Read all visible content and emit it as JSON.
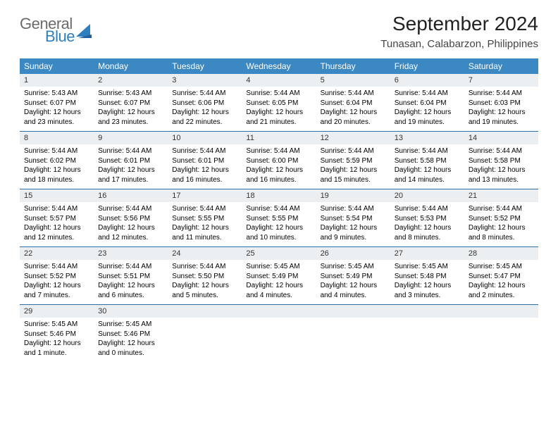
{
  "brand": {
    "general": "General",
    "blue": "Blue"
  },
  "title": "September 2024",
  "location": "Tunasan, Calabarzon, Philippines",
  "colors": {
    "header_bg": "#3b88c3",
    "daynum_bg": "#eceff1",
    "week_border": "#2d6fa3",
    "logo_gray": "#6b6b6b",
    "logo_blue": "#2f7fbf"
  },
  "day_headers": [
    "Sunday",
    "Monday",
    "Tuesday",
    "Wednesday",
    "Thursday",
    "Friday",
    "Saturday"
  ],
  "weeks": [
    [
      {
        "n": "1",
        "sr": "Sunrise: 5:43 AM",
        "ss": "Sunset: 6:07 PM",
        "dl": "Daylight: 12 hours and 23 minutes."
      },
      {
        "n": "2",
        "sr": "Sunrise: 5:43 AM",
        "ss": "Sunset: 6:07 PM",
        "dl": "Daylight: 12 hours and 23 minutes."
      },
      {
        "n": "3",
        "sr": "Sunrise: 5:44 AM",
        "ss": "Sunset: 6:06 PM",
        "dl": "Daylight: 12 hours and 22 minutes."
      },
      {
        "n": "4",
        "sr": "Sunrise: 5:44 AM",
        "ss": "Sunset: 6:05 PM",
        "dl": "Daylight: 12 hours and 21 minutes."
      },
      {
        "n": "5",
        "sr": "Sunrise: 5:44 AM",
        "ss": "Sunset: 6:04 PM",
        "dl": "Daylight: 12 hours and 20 minutes."
      },
      {
        "n": "6",
        "sr": "Sunrise: 5:44 AM",
        "ss": "Sunset: 6:04 PM",
        "dl": "Daylight: 12 hours and 19 minutes."
      },
      {
        "n": "7",
        "sr": "Sunrise: 5:44 AM",
        "ss": "Sunset: 6:03 PM",
        "dl": "Daylight: 12 hours and 19 minutes."
      }
    ],
    [
      {
        "n": "8",
        "sr": "Sunrise: 5:44 AM",
        "ss": "Sunset: 6:02 PM",
        "dl": "Daylight: 12 hours and 18 minutes."
      },
      {
        "n": "9",
        "sr": "Sunrise: 5:44 AM",
        "ss": "Sunset: 6:01 PM",
        "dl": "Daylight: 12 hours and 17 minutes."
      },
      {
        "n": "10",
        "sr": "Sunrise: 5:44 AM",
        "ss": "Sunset: 6:01 PM",
        "dl": "Daylight: 12 hours and 16 minutes."
      },
      {
        "n": "11",
        "sr": "Sunrise: 5:44 AM",
        "ss": "Sunset: 6:00 PM",
        "dl": "Daylight: 12 hours and 16 minutes."
      },
      {
        "n": "12",
        "sr": "Sunrise: 5:44 AM",
        "ss": "Sunset: 5:59 PM",
        "dl": "Daylight: 12 hours and 15 minutes."
      },
      {
        "n": "13",
        "sr": "Sunrise: 5:44 AM",
        "ss": "Sunset: 5:58 PM",
        "dl": "Daylight: 12 hours and 14 minutes."
      },
      {
        "n": "14",
        "sr": "Sunrise: 5:44 AM",
        "ss": "Sunset: 5:58 PM",
        "dl": "Daylight: 12 hours and 13 minutes."
      }
    ],
    [
      {
        "n": "15",
        "sr": "Sunrise: 5:44 AM",
        "ss": "Sunset: 5:57 PM",
        "dl": "Daylight: 12 hours and 12 minutes."
      },
      {
        "n": "16",
        "sr": "Sunrise: 5:44 AM",
        "ss": "Sunset: 5:56 PM",
        "dl": "Daylight: 12 hours and 12 minutes."
      },
      {
        "n": "17",
        "sr": "Sunrise: 5:44 AM",
        "ss": "Sunset: 5:55 PM",
        "dl": "Daylight: 12 hours and 11 minutes."
      },
      {
        "n": "18",
        "sr": "Sunrise: 5:44 AM",
        "ss": "Sunset: 5:55 PM",
        "dl": "Daylight: 12 hours and 10 minutes."
      },
      {
        "n": "19",
        "sr": "Sunrise: 5:44 AM",
        "ss": "Sunset: 5:54 PM",
        "dl": "Daylight: 12 hours and 9 minutes."
      },
      {
        "n": "20",
        "sr": "Sunrise: 5:44 AM",
        "ss": "Sunset: 5:53 PM",
        "dl": "Daylight: 12 hours and 8 minutes."
      },
      {
        "n": "21",
        "sr": "Sunrise: 5:44 AM",
        "ss": "Sunset: 5:52 PM",
        "dl": "Daylight: 12 hours and 8 minutes."
      }
    ],
    [
      {
        "n": "22",
        "sr": "Sunrise: 5:44 AM",
        "ss": "Sunset: 5:52 PM",
        "dl": "Daylight: 12 hours and 7 minutes."
      },
      {
        "n": "23",
        "sr": "Sunrise: 5:44 AM",
        "ss": "Sunset: 5:51 PM",
        "dl": "Daylight: 12 hours and 6 minutes."
      },
      {
        "n": "24",
        "sr": "Sunrise: 5:44 AM",
        "ss": "Sunset: 5:50 PM",
        "dl": "Daylight: 12 hours and 5 minutes."
      },
      {
        "n": "25",
        "sr": "Sunrise: 5:45 AM",
        "ss": "Sunset: 5:49 PM",
        "dl": "Daylight: 12 hours and 4 minutes."
      },
      {
        "n": "26",
        "sr": "Sunrise: 5:45 AM",
        "ss": "Sunset: 5:49 PM",
        "dl": "Daylight: 12 hours and 4 minutes."
      },
      {
        "n": "27",
        "sr": "Sunrise: 5:45 AM",
        "ss": "Sunset: 5:48 PM",
        "dl": "Daylight: 12 hours and 3 minutes."
      },
      {
        "n": "28",
        "sr": "Sunrise: 5:45 AM",
        "ss": "Sunset: 5:47 PM",
        "dl": "Daylight: 12 hours and 2 minutes."
      }
    ],
    [
      {
        "n": "29",
        "sr": "Sunrise: 5:45 AM",
        "ss": "Sunset: 5:46 PM",
        "dl": "Daylight: 12 hours and 1 minute."
      },
      {
        "n": "30",
        "sr": "Sunrise: 5:45 AM",
        "ss": "Sunset: 5:46 PM",
        "dl": "Daylight: 12 hours and 0 minutes."
      },
      {
        "empty": true
      },
      {
        "empty": true
      },
      {
        "empty": true
      },
      {
        "empty": true
      },
      {
        "empty": true
      }
    ]
  ]
}
